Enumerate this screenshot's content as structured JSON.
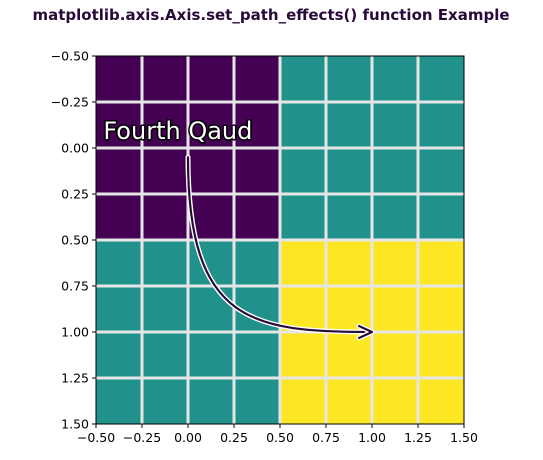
{
  "chart_data": {
    "type": "heatmap",
    "title": "matplotlib.axis.Axis.set_path_effects() function Example",
    "xlabel": "",
    "ylabel": "",
    "xlim": [
      -0.5,
      1.5
    ],
    "ylim": [
      1.5,
      -0.5
    ],
    "y_inverted": true,
    "grid": false,
    "x_ticks": [
      -0.5,
      -0.25,
      0.0,
      0.25,
      0.5,
      0.75,
      1.0,
      1.25,
      1.5
    ],
    "x_tick_labels": [
      "−0.50",
      "−0.25",
      "0.00",
      "0.25",
      "0.50",
      "0.75",
      "1.00",
      "1.25",
      "1.50"
    ],
    "y_ticks": [
      -0.5,
      -0.25,
      0.0,
      0.25,
      0.5,
      0.75,
      1.0,
      1.25,
      1.5
    ],
    "y_tick_labels": [
      "−0.50",
      "−0.25",
      "0.00",
      "0.25",
      "0.50",
      "0.75",
      "1.00",
      "1.25",
      "1.50"
    ],
    "matrix": [
      [
        0,
        1
      ],
      [
        1,
        2
      ]
    ],
    "colormap": "viridis",
    "cell_colors": {
      "0": "#440154",
      "1": "#21918c",
      "2": "#fde725"
    },
    "hatch_lines_per_cell": 4,
    "hatch_color": "#e6e6e6",
    "annotation": {
      "text": "Fourth Qaud",
      "text_anchor": [
        -0.46,
        -0.05
      ],
      "arrow_from": [
        0.0,
        0.05
      ],
      "arrow_to": [
        1.0,
        1.0
      ],
      "arrow_color": "#2a0a3a"
    }
  }
}
